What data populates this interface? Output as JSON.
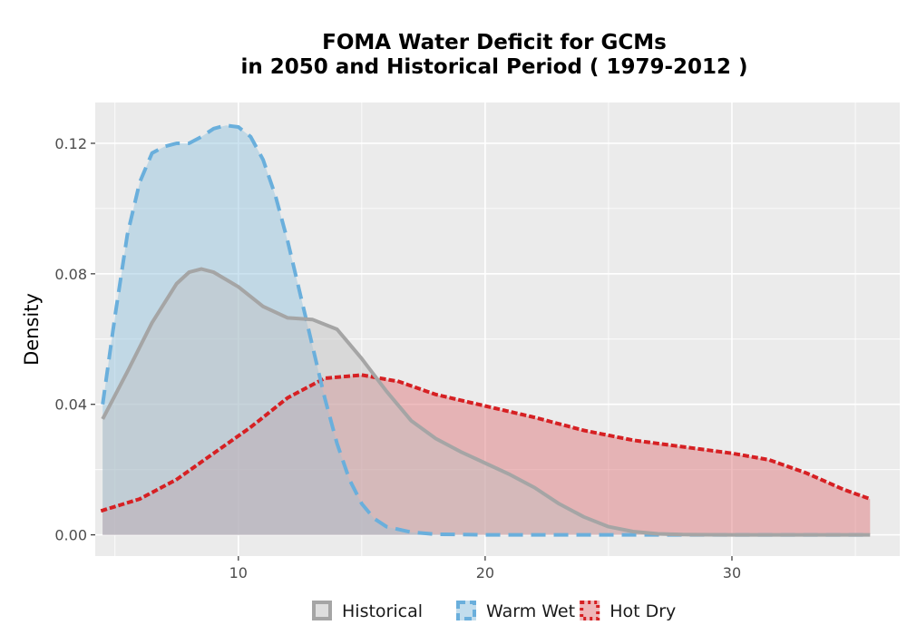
{
  "chart_data": {
    "type": "area",
    "title_lines": [
      "FOMA  Water Deficit for GCMs",
      "in 2050 and Historical Period ( 1979-2012 )"
    ],
    "xlabel": "",
    "ylabel": "Density",
    "xlim": [
      4.2,
      36.8
    ],
    "ylim": [
      -0.0065,
      0.1325
    ],
    "x_ticks": [
      10,
      20,
      30
    ],
    "y_ticks": [
      0.0,
      0.04,
      0.08,
      0.12
    ],
    "x_tick_labels": [
      "10",
      "20",
      "30"
    ],
    "y_tick_labels": [
      "0.00",
      "0.04",
      "0.08",
      "0.12"
    ],
    "grid": true,
    "legend_position": "bottom",
    "series": [
      {
        "name": "Hot Dry",
        "fill": "#e07b7f",
        "fill_opacity": 0.5,
        "stroke": "#d62023",
        "dash": "dotted",
        "points": [
          [
            4.5,
            0.0075
          ],
          [
            6,
            0.011
          ],
          [
            7.5,
            0.017
          ],
          [
            9,
            0.025
          ],
          [
            10.5,
            0.033
          ],
          [
            12,
            0.042
          ],
          [
            13.5,
            0.048
          ],
          [
            15,
            0.049
          ],
          [
            16.5,
            0.047
          ],
          [
            18,
            0.043
          ],
          [
            20,
            0.0395
          ],
          [
            22,
            0.036
          ],
          [
            24,
            0.032
          ],
          [
            26,
            0.029
          ],
          [
            28,
            0.027
          ],
          [
            30,
            0.025
          ],
          [
            31.5,
            0.023
          ],
          [
            33,
            0.019
          ],
          [
            34.5,
            0.014
          ],
          [
            35.6,
            0.011
          ]
        ]
      },
      {
        "name": "Warm Wet",
        "fill": "#8fc1de",
        "fill_opacity": 0.45,
        "stroke": "#6aafdc",
        "dash": "dashed",
        "points": [
          [
            4.5,
            0.04
          ],
          [
            5,
            0.067
          ],
          [
            5.5,
            0.092
          ],
          [
            6,
            0.108
          ],
          [
            6.5,
            0.117
          ],
          [
            7,
            0.119
          ],
          [
            7.5,
            0.12
          ],
          [
            8,
            0.12
          ],
          [
            8.5,
            0.122
          ],
          [
            9,
            0.1245
          ],
          [
            9.5,
            0.1255
          ],
          [
            10,
            0.125
          ],
          [
            10.5,
            0.122
          ],
          [
            11,
            0.115
          ],
          [
            11.5,
            0.104
          ],
          [
            12,
            0.09
          ],
          [
            12.5,
            0.074
          ],
          [
            13,
            0.058
          ],
          [
            13.5,
            0.042
          ],
          [
            14,
            0.028
          ],
          [
            14.5,
            0.017
          ],
          [
            15,
            0.0095
          ],
          [
            15.5,
            0.005
          ],
          [
            16,
            0.0025
          ],
          [
            17,
            0.0008
          ],
          [
            18,
            0.0002
          ],
          [
            20,
            0.0
          ],
          [
            25,
            0.0
          ],
          [
            30,
            0.0
          ],
          [
            35.6,
            0.0
          ]
        ]
      },
      {
        "name": "Historical",
        "fill": "#c2c2c2",
        "fill_opacity": 0.45,
        "stroke": "#a5a5a5",
        "dash": "solid",
        "points": [
          [
            4.5,
            0.0355
          ],
          [
            5.5,
            0.05
          ],
          [
            6.5,
            0.065
          ],
          [
            7.5,
            0.077
          ],
          [
            8,
            0.0805
          ],
          [
            8.5,
            0.0815
          ],
          [
            9,
            0.0805
          ],
          [
            10,
            0.076
          ],
          [
            11,
            0.07
          ],
          [
            12,
            0.0665
          ],
          [
            13,
            0.066
          ],
          [
            14,
            0.063
          ],
          [
            15,
            0.054
          ],
          [
            16,
            0.044
          ],
          [
            17,
            0.035
          ],
          [
            18,
            0.0295
          ],
          [
            19,
            0.0255
          ],
          [
            20,
            0.022
          ],
          [
            21,
            0.0185
          ],
          [
            22,
            0.0145
          ],
          [
            23,
            0.0095
          ],
          [
            24,
            0.0055
          ],
          [
            25,
            0.0025
          ],
          [
            26,
            0.001
          ],
          [
            27,
            0.0003
          ],
          [
            28,
            0.0001
          ],
          [
            30,
            0.0
          ],
          [
            35.6,
            0.0
          ]
        ]
      }
    ],
    "legend_order": [
      "Historical",
      "Warm Wet",
      "Hot Dry"
    ]
  }
}
